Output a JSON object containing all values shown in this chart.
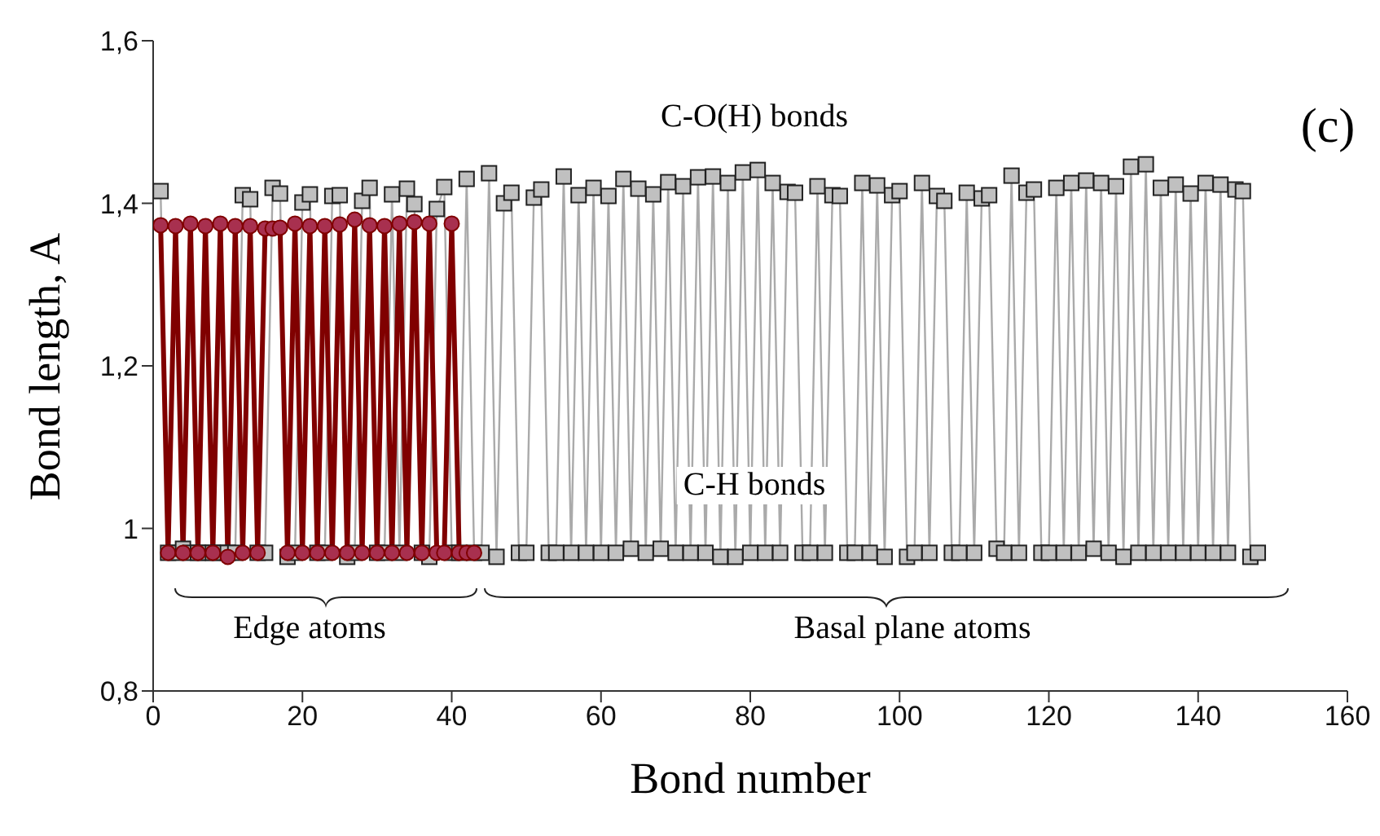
{
  "chart_data": {
    "type": "line",
    "xlabel": "Bond number",
    "ylabel": "Bond length, A",
    "xlim": [
      0,
      160
    ],
    "xticks": [
      0,
      20,
      40,
      60,
      80,
      100,
      120,
      140,
      160
    ],
    "ylim": [
      0.8,
      1.6
    ],
    "yticks": [
      {
        "value": 0.8,
        "label": "0,8"
      },
      {
        "value": 1,
        "label": "1"
      },
      {
        "value": 1.2,
        "label": "1,2"
      },
      {
        "value": 1.4,
        "label": "1,4"
      },
      {
        "value": 1.6,
        "label": "1,6"
      }
    ],
    "grid": false,
    "legend": false,
    "annotations": [
      "C-O(H) bonds",
      "(c)",
      "C-H bonds",
      "Edge atoms",
      "Basal plane atoms"
    ],
    "series": [
      {
        "color": "#aaaaaa",
        "marker": "square",
        "x": [
          1,
          2,
          3,
          4,
          5,
          6,
          7,
          8,
          9,
          10,
          11,
          12,
          13,
          14,
          15,
          16,
          17,
          18,
          19,
          20,
          21,
          22,
          23,
          24,
          25,
          26,
          27,
          28,
          29,
          30,
          31,
          32,
          33,
          34,
          35,
          36,
          37,
          38,
          39,
          40,
          41,
          42,
          43,
          44,
          45,
          46,
          47,
          48,
          49,
          50,
          51,
          52,
          53,
          54,
          55,
          56,
          57,
          58,
          59,
          60,
          61,
          62,
          63,
          64,
          65,
          66,
          67,
          68,
          69,
          70,
          71,
          72,
          73,
          74,
          75,
          76,
          77,
          78,
          79,
          80,
          81,
          82,
          83,
          84,
          85,
          86,
          87,
          88,
          89,
          90,
          91,
          92,
          93,
          94,
          95,
          96,
          97,
          98,
          99,
          100,
          101,
          102,
          103,
          104,
          105,
          106,
          107,
          108,
          109,
          110,
          111,
          112,
          113,
          114,
          115,
          116,
          117,
          118,
          119,
          120,
          121,
          122,
          123,
          124,
          125,
          126,
          127,
          128,
          129,
          130,
          131,
          132,
          133,
          134,
          135,
          136,
          137,
          138,
          139,
          140,
          141,
          142,
          143,
          144,
          145,
          146,
          147,
          148
        ],
        "values": [
          1.415,
          0.97,
          0.97,
          0.975,
          0.97,
          0.97,
          0.97,
          0.97,
          0.97,
          0.97,
          0.97,
          1.41,
          1.405,
          0.97,
          0.97,
          1.419,
          1.412,
          0.965,
          0.97,
          1.401,
          1.411,
          0.97,
          0.97,
          1.409,
          1.41,
          0.965,
          0.97,
          1.403,
          1.419,
          0.97,
          0.97,
          1.411,
          0.97,
          1.418,
          1.399,
          0.97,
          0.965,
          1.393,
          1.42,
          0.97,
          0.97,
          1.43,
          0.97,
          0.97,
          1.437,
          0.965,
          1.4,
          1.413,
          0.97,
          0.97,
          1.407,
          1.417,
          0.97,
          0.97,
          1.433,
          0.97,
          1.41,
          0.97,
          1.419,
          0.97,
          1.409,
          0.97,
          1.43,
          0.975,
          1.418,
          0.97,
          1.411,
          0.975,
          1.426,
          0.97,
          1.421,
          0.97,
          1.432,
          0.97,
          1.433,
          0.965,
          1.425,
          0.965,
          1.438,
          0.97,
          1.441,
          0.97,
          1.425,
          0.97,
          1.414,
          1.413,
          0.97,
          0.97,
          1.421,
          0.97,
          1.41,
          1.409,
          0.97,
          0.97,
          1.425,
          0.97,
          1.422,
          0.965,
          1.41,
          1.415,
          0.965,
          0.97,
          1.425,
          0.97,
          1.409,
          1.403,
          0.97,
          0.97,
          1.413,
          0.97,
          1.406,
          1.41,
          0.975,
          0.97,
          1.434,
          0.97,
          1.413,
          1.417,
          0.97,
          0.97,
          1.419,
          0.97,
          1.425,
          0.97,
          1.428,
          0.975,
          1.425,
          0.97,
          1.421,
          0.965,
          1.445,
          0.97,
          1.448,
          0.97,
          1.419,
          0.97,
          1.423,
          0.97,
          1.412,
          0.97,
          1.425,
          0.97,
          1.423,
          0.97,
          1.417,
          1.415,
          0.965,
          0.97
        ]
      },
      {
        "color": "#800000",
        "marker": "circle",
        "x": [
          1,
          2,
          3,
          4,
          5,
          6,
          7,
          8,
          9,
          10,
          11,
          12,
          13,
          14,
          15,
          16,
          17,
          18,
          19,
          20,
          21,
          22,
          23,
          24,
          25,
          26,
          27,
          28,
          29,
          30,
          31,
          32,
          33,
          34,
          35,
          36,
          37,
          38,
          39,
          40,
          41,
          42,
          43
        ],
        "values": [
          1.373,
          0.97,
          1.372,
          0.97,
          1.375,
          0.97,
          1.372,
          0.97,
          1.375,
          0.965,
          1.372,
          0.97,
          1.372,
          0.97,
          1.369,
          1.369,
          1.37,
          0.97,
          1.375,
          0.97,
          1.372,
          0.97,
          1.372,
          0.97,
          1.374,
          0.97,
          1.38,
          0.97,
          1.373,
          0.97,
          1.372,
          0.97,
          1.375,
          0.97,
          1.377,
          0.97,
          1.375,
          0.97,
          0.97,
          1.375,
          0.97,
          0.97,
          0.97
        ]
      }
    ]
  }
}
